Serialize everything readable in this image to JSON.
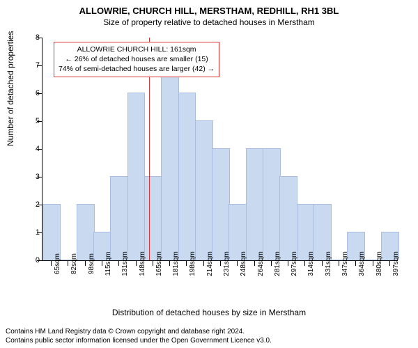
{
  "title_main": "ALLOWRIE, CHURCH HILL, MERSTHAM, REDHILL, RH1 3BL",
  "title_sub": "Size of property relative to detached houses in Merstham",
  "ylabel": "Number of detached properties",
  "xlabel": "Distribution of detached houses by size in Merstham",
  "footer_line1": "Contains HM Land Registry data © Crown copyright and database right 2024.",
  "footer_line2": "Contains public sector information licensed under the Open Government Licence v3.0.",
  "chart": {
    "type": "histogram",
    "ylim": [
      0,
      8
    ],
    "ytick_step": 1,
    "bar_color": "#c9d9f0",
    "bar_border": "#a8bde0",
    "background": "#ffffff",
    "x_categories": [
      "65sqm",
      "82sqm",
      "98sqm",
      "115sqm",
      "131sqm",
      "148sqm",
      "165sqm",
      "181sqm",
      "198sqm",
      "214sqm",
      "231sqm",
      "248sqm",
      "264sqm",
      "281sqm",
      "297sqm",
      "314sqm",
      "331sqm",
      "347sqm",
      "364sqm",
      "380sqm",
      "397sqm"
    ],
    "values": [
      2,
      0,
      2,
      1,
      3,
      6,
      3,
      7,
      6,
      5,
      4,
      2,
      4,
      4,
      3,
      2,
      2,
      0,
      1,
      0,
      1
    ],
    "marker": {
      "position_index": 5.8,
      "color": "#e03030"
    },
    "annotation": {
      "line1": "ALLOWRIE CHURCH HILL: 161sqm",
      "line2": "← 26% of detached houses are smaller (15)",
      "line3": "74% of semi-detached houses are larger (42) →",
      "border_color": "#e03030",
      "background": "#ffffff",
      "fontsize": 10.5
    }
  }
}
